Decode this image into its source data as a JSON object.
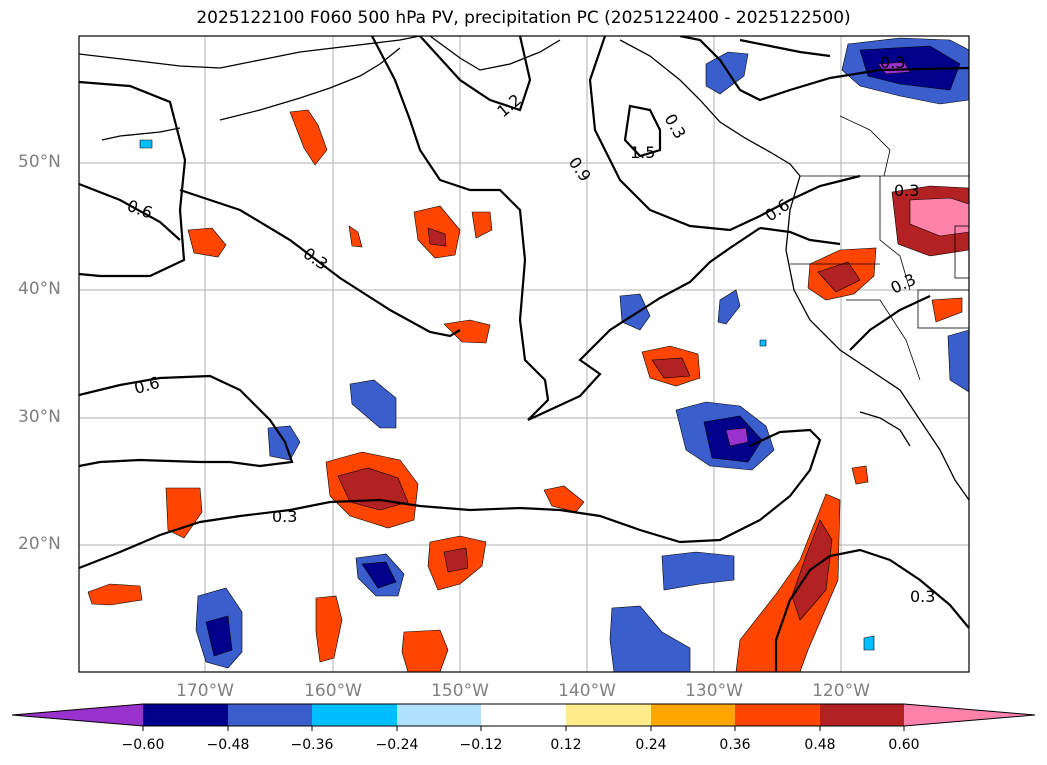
{
  "title": "2025122100 F060 500 hPa PV, precipitation PC (2025122400 - 2025122500)",
  "lat_labels": [
    "50°N",
    "40°N",
    "30°N",
    "20°N"
  ],
  "lon_labels": [
    "170°W",
    "160°W",
    "150°W",
    "140°W",
    "130°W",
    "120°W"
  ],
  "contour_labels": [
    "0.3",
    "0.6",
    "0.9",
    "1.2",
    "1.5",
    "0.3",
    "0.6",
    "0.3",
    "0.3",
    "0.6",
    "0.3",
    "0.3",
    "0.3"
  ],
  "colorbar": {
    "ticks": [
      "−0.60",
      "−0.48",
      "−0.36",
      "−0.24",
      "−0.12",
      "0.12",
      "0.24",
      "0.36",
      "0.48",
      "0.60"
    ],
    "colors": [
      "#9932cc",
      "#00008b",
      "#3a5fcd",
      "#00bfff",
      "#b0e2ff",
      "#ffffff",
      "#ffec8b",
      "#ffa500",
      "#ff4500",
      "#b22222",
      "#ff82ab"
    ]
  },
  "map_extent": {
    "lon": [
      -180,
      -110
    ],
    "lat": [
      10,
      60
    ]
  }
}
